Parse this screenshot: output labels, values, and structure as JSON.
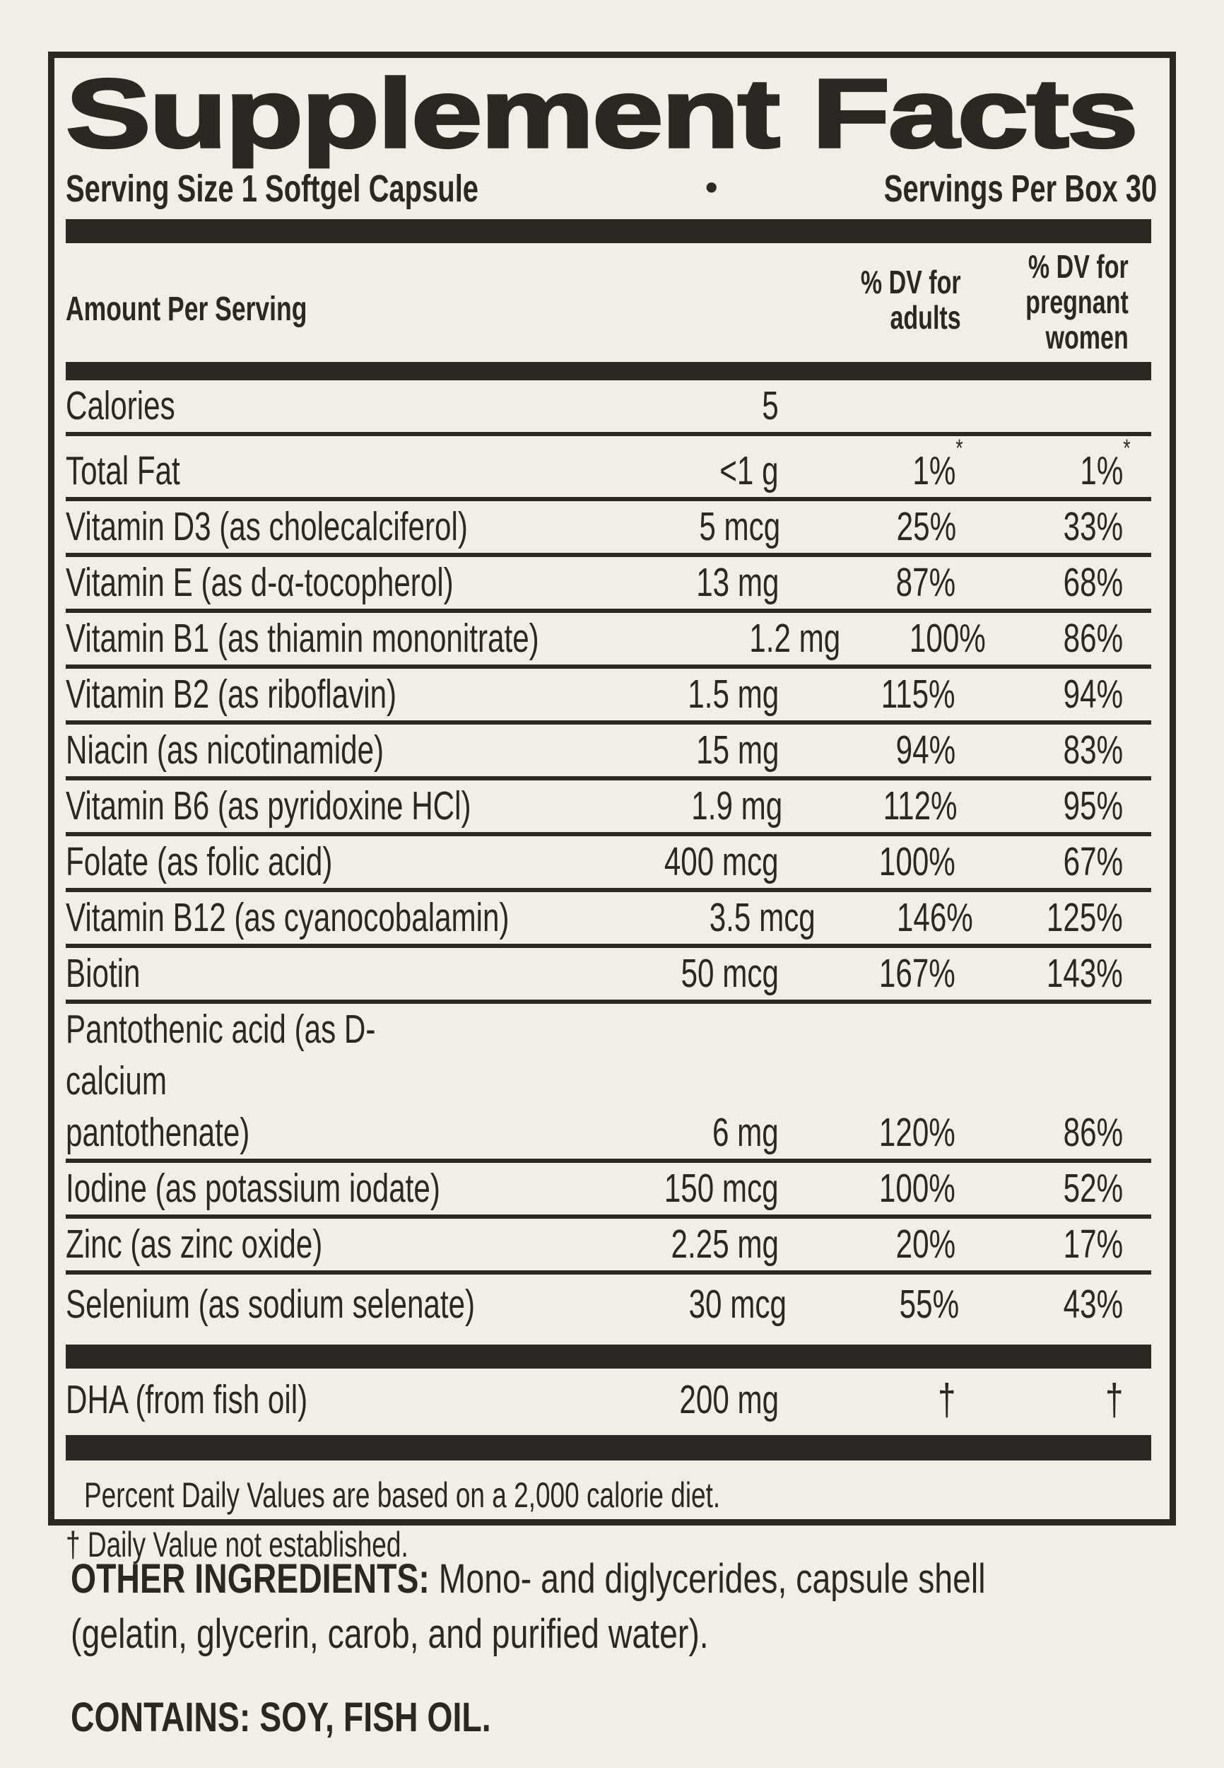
{
  "colors": {
    "ink": "#2b2722",
    "background": "#f2eee7"
  },
  "label": {
    "title": "Supplement Facts",
    "serving_size": "Serving Size 1 Softgel Capsule",
    "separator_bullet": "•",
    "servings_per_box": "Servings Per Box 30",
    "columns": {
      "amount_header": "Amount Per Serving",
      "dv_adults_header": "% DV for\nadults",
      "dv_pregnant_header": "% DV for\npregnant\nwomen"
    },
    "rows": [
      {
        "name": "Calories",
        "amount": "5",
        "adults": "",
        "pregnant": ""
      },
      {
        "name": "Total Fat",
        "amount": "<1 g",
        "adults": "1%",
        "pregnant": "1%",
        "star": true
      },
      {
        "name": "Vitamin D3 (as cholecalciferol)",
        "amount": "5 mcg",
        "adults": "25%",
        "pregnant": "33%"
      },
      {
        "name": "Vitamin E (as d-α-tocopherol)",
        "amount": "13 mg",
        "adults": "87%",
        "pregnant": "68%"
      },
      {
        "name": "Vitamin B1 (as thiamin mononitrate)",
        "amount": "1.2 mg",
        "adults": "100%",
        "pregnant": "86%"
      },
      {
        "name": "Vitamin B2 (as riboflavin)",
        "amount": "1.5 mg",
        "adults": "115%",
        "pregnant": "94%"
      },
      {
        "name": "Niacin (as nicotinamide)",
        "amount": "15 mg",
        "adults": "94%",
        "pregnant": "83%"
      },
      {
        "name": "Vitamin B6 (as pyridoxine HCl)",
        "amount": "1.9 mg",
        "adults": "112%",
        "pregnant": "95%"
      },
      {
        "name": "Folate (as folic acid)",
        "amount": "400 mcg",
        "adults": "100%",
        "pregnant": "67%"
      },
      {
        "name": "Vitamin B12 (as cyanocobalamin)",
        "amount": "3.5 mcg",
        "adults": "146%",
        "pregnant": "125%"
      },
      {
        "name": "Biotin",
        "amount": "50 mcg",
        "adults": "167%",
        "pregnant": "143%"
      },
      {
        "name": "Pantothenic acid (as D-calcium",
        "name2": "pantothenate)",
        "amount": "6 mg",
        "adults": "120%",
        "pregnant": "86%"
      },
      {
        "name": "Iodine (as potassium iodate)",
        "amount": "150 mcg",
        "adults": "100%",
        "pregnant": "52%"
      },
      {
        "name": "Zinc (as zinc oxide)",
        "amount": "2.25 mg",
        "adults": "20%",
        "pregnant": "17%"
      },
      {
        "name": "Selenium (as sodium selenate)",
        "amount": "30 mcg",
        "adults": "55%",
        "pregnant": "43%"
      }
    ],
    "dha_row": {
      "name": "DHA (from fish oil)",
      "amount": "200 mg",
      "adults": "†",
      "pregnant": "†"
    },
    "footnotes": {
      "dv_note": "Percent Daily Values are based on a 2,000 calorie diet.",
      "dagger_note": "† Daily Value not established."
    }
  },
  "other_ingredients": {
    "label": "OTHER INGREDIENTS:",
    "text": " Mono- and diglycerides, capsule shell\n(gelatin, glycerin, carob, and purified water)."
  },
  "contains": {
    "label": "CONTAINS:",
    "text": " SOY, FISH OIL."
  }
}
